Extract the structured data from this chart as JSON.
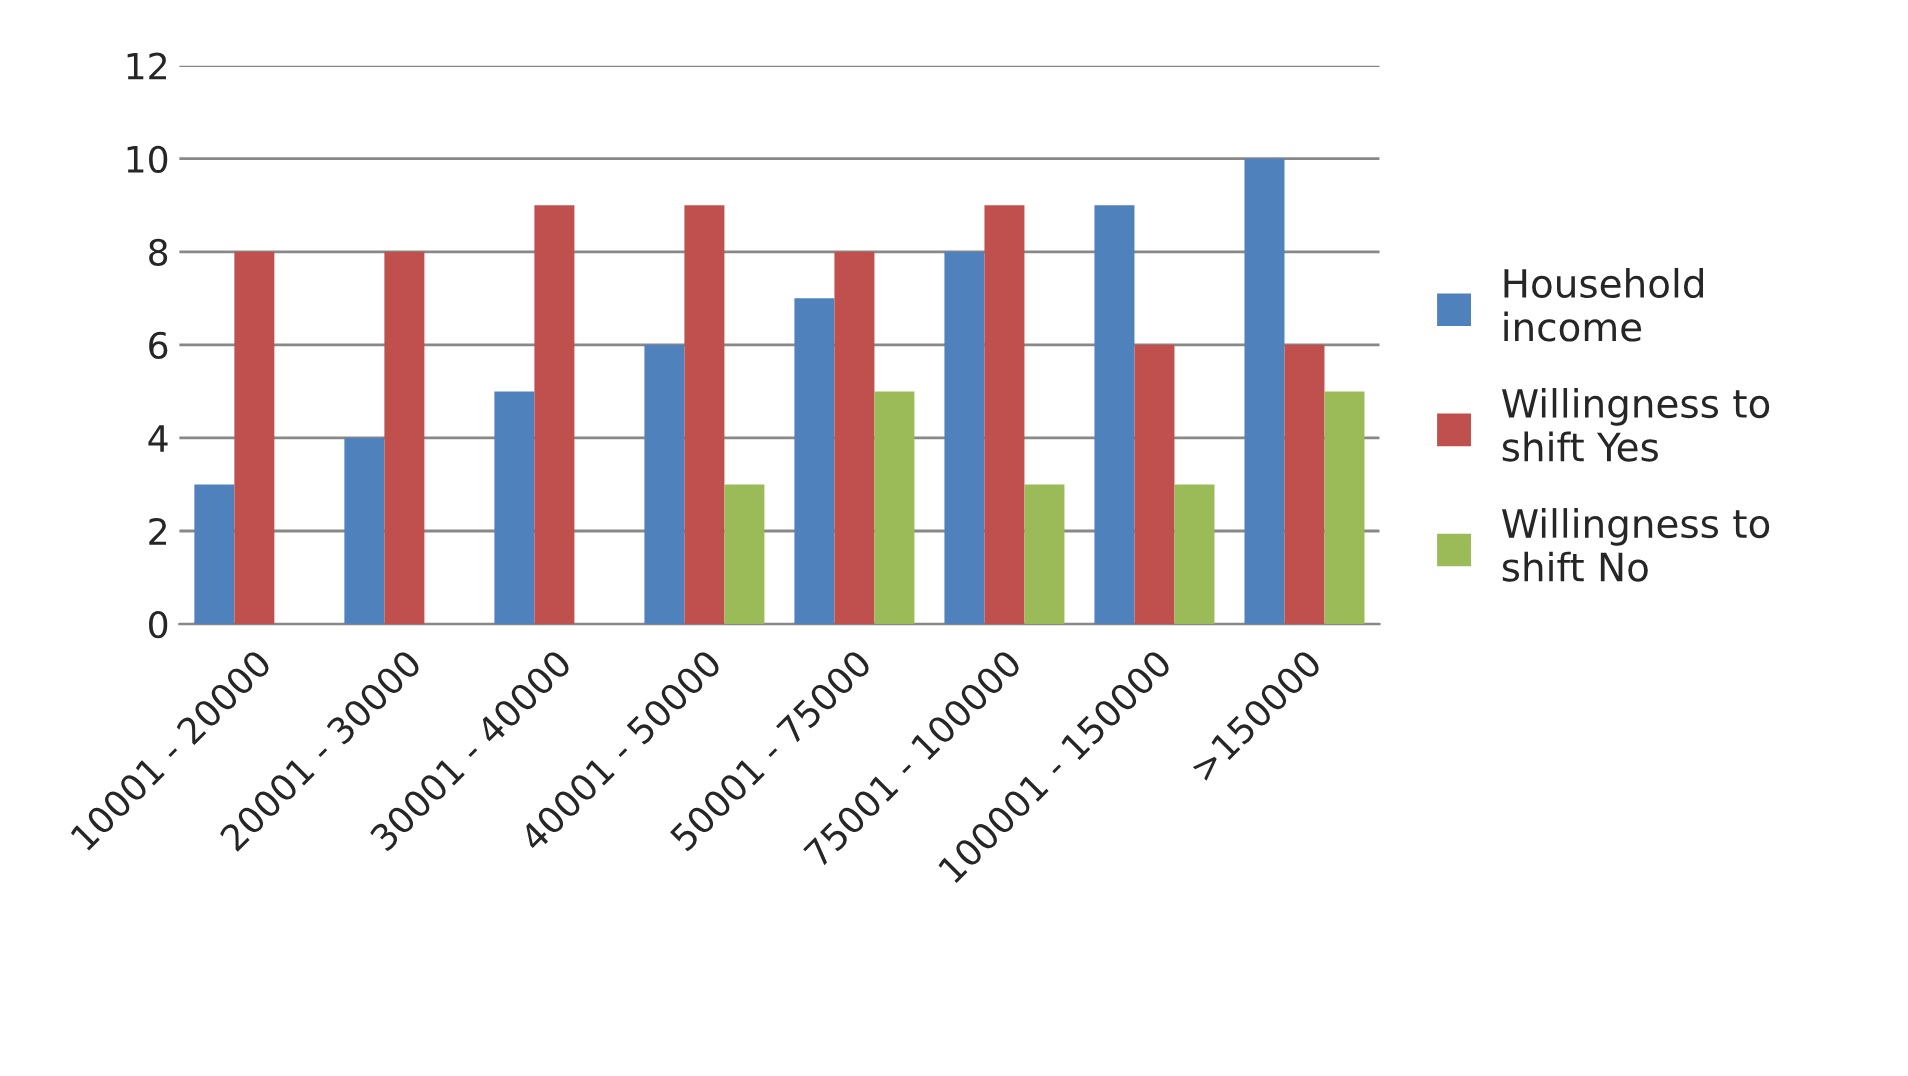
{
  "chart_data": {
    "type": "bar",
    "categories": [
      "10001 - 20000",
      "20001 - 30000",
      "30001 - 40000",
      "40001 - 50000",
      "50001 - 75000",
      "75001 - 100000",
      "100001 - 150000",
      ">150000"
    ],
    "series": [
      {
        "name": "Household income",
        "color": "#4f81bd",
        "values": [
          3,
          4,
          5,
          6,
          7,
          8,
          9,
          10
        ]
      },
      {
        "name": "Willingness to shift Yes",
        "color": "#c0504d",
        "values": [
          8,
          8,
          9,
          9,
          8,
          9,
          6,
          6
        ]
      },
      {
        "name": "Willingness to shift No",
        "color": "#9bbb59",
        "values": [
          null,
          null,
          null,
          3,
          5,
          3,
          3,
          5
        ]
      }
    ],
    "ylim": [
      0,
      12
    ],
    "yticks": [
      0,
      2,
      4,
      6,
      8,
      10,
      12
    ],
    "grid": "y",
    "legend": "right"
  }
}
